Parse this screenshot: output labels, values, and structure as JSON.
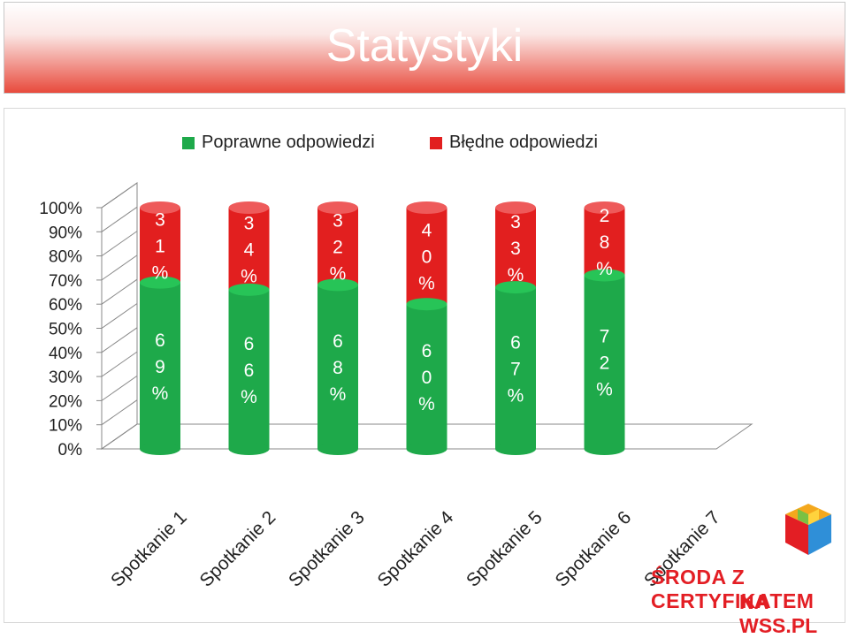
{
  "title": "Statystyki",
  "colors": {
    "correct": "#1ea94a",
    "wrong": "#e21f1f"
  },
  "legend": {
    "correct": "Poprawne odpowiedzi",
    "wrong": "Błędne odpowiedzi"
  },
  "brand": {
    "line1": "ŚRODA Z CERTYFIKATEM",
    "line2": "NA WSS.PL"
  },
  "chart_data": {
    "type": "bar",
    "stacked": "percent",
    "categories": [
      "Spotkanie 1",
      "Spotkanie 2",
      "Spotkanie 3",
      "Spotkanie 4",
      "Spotkanie 5",
      "Spotkanie 6",
      "Spotkanie 7"
    ],
    "series": [
      {
        "name": "Poprawne odpowiedzi",
        "values": [
          69,
          66,
          68,
          60,
          67,
          72,
          null
        ]
      },
      {
        "name": "Błędne odpowiedzi",
        "values": [
          31,
          34,
          32,
          40,
          33,
          28,
          null
        ]
      }
    ],
    "ylim": [
      0,
      100
    ],
    "yticks": [
      "0%",
      "10%",
      "20%",
      "30%",
      "40%",
      "50%",
      "60%",
      "70%",
      "80%",
      "90%",
      "100%"
    ],
    "legend_position": "top"
  }
}
